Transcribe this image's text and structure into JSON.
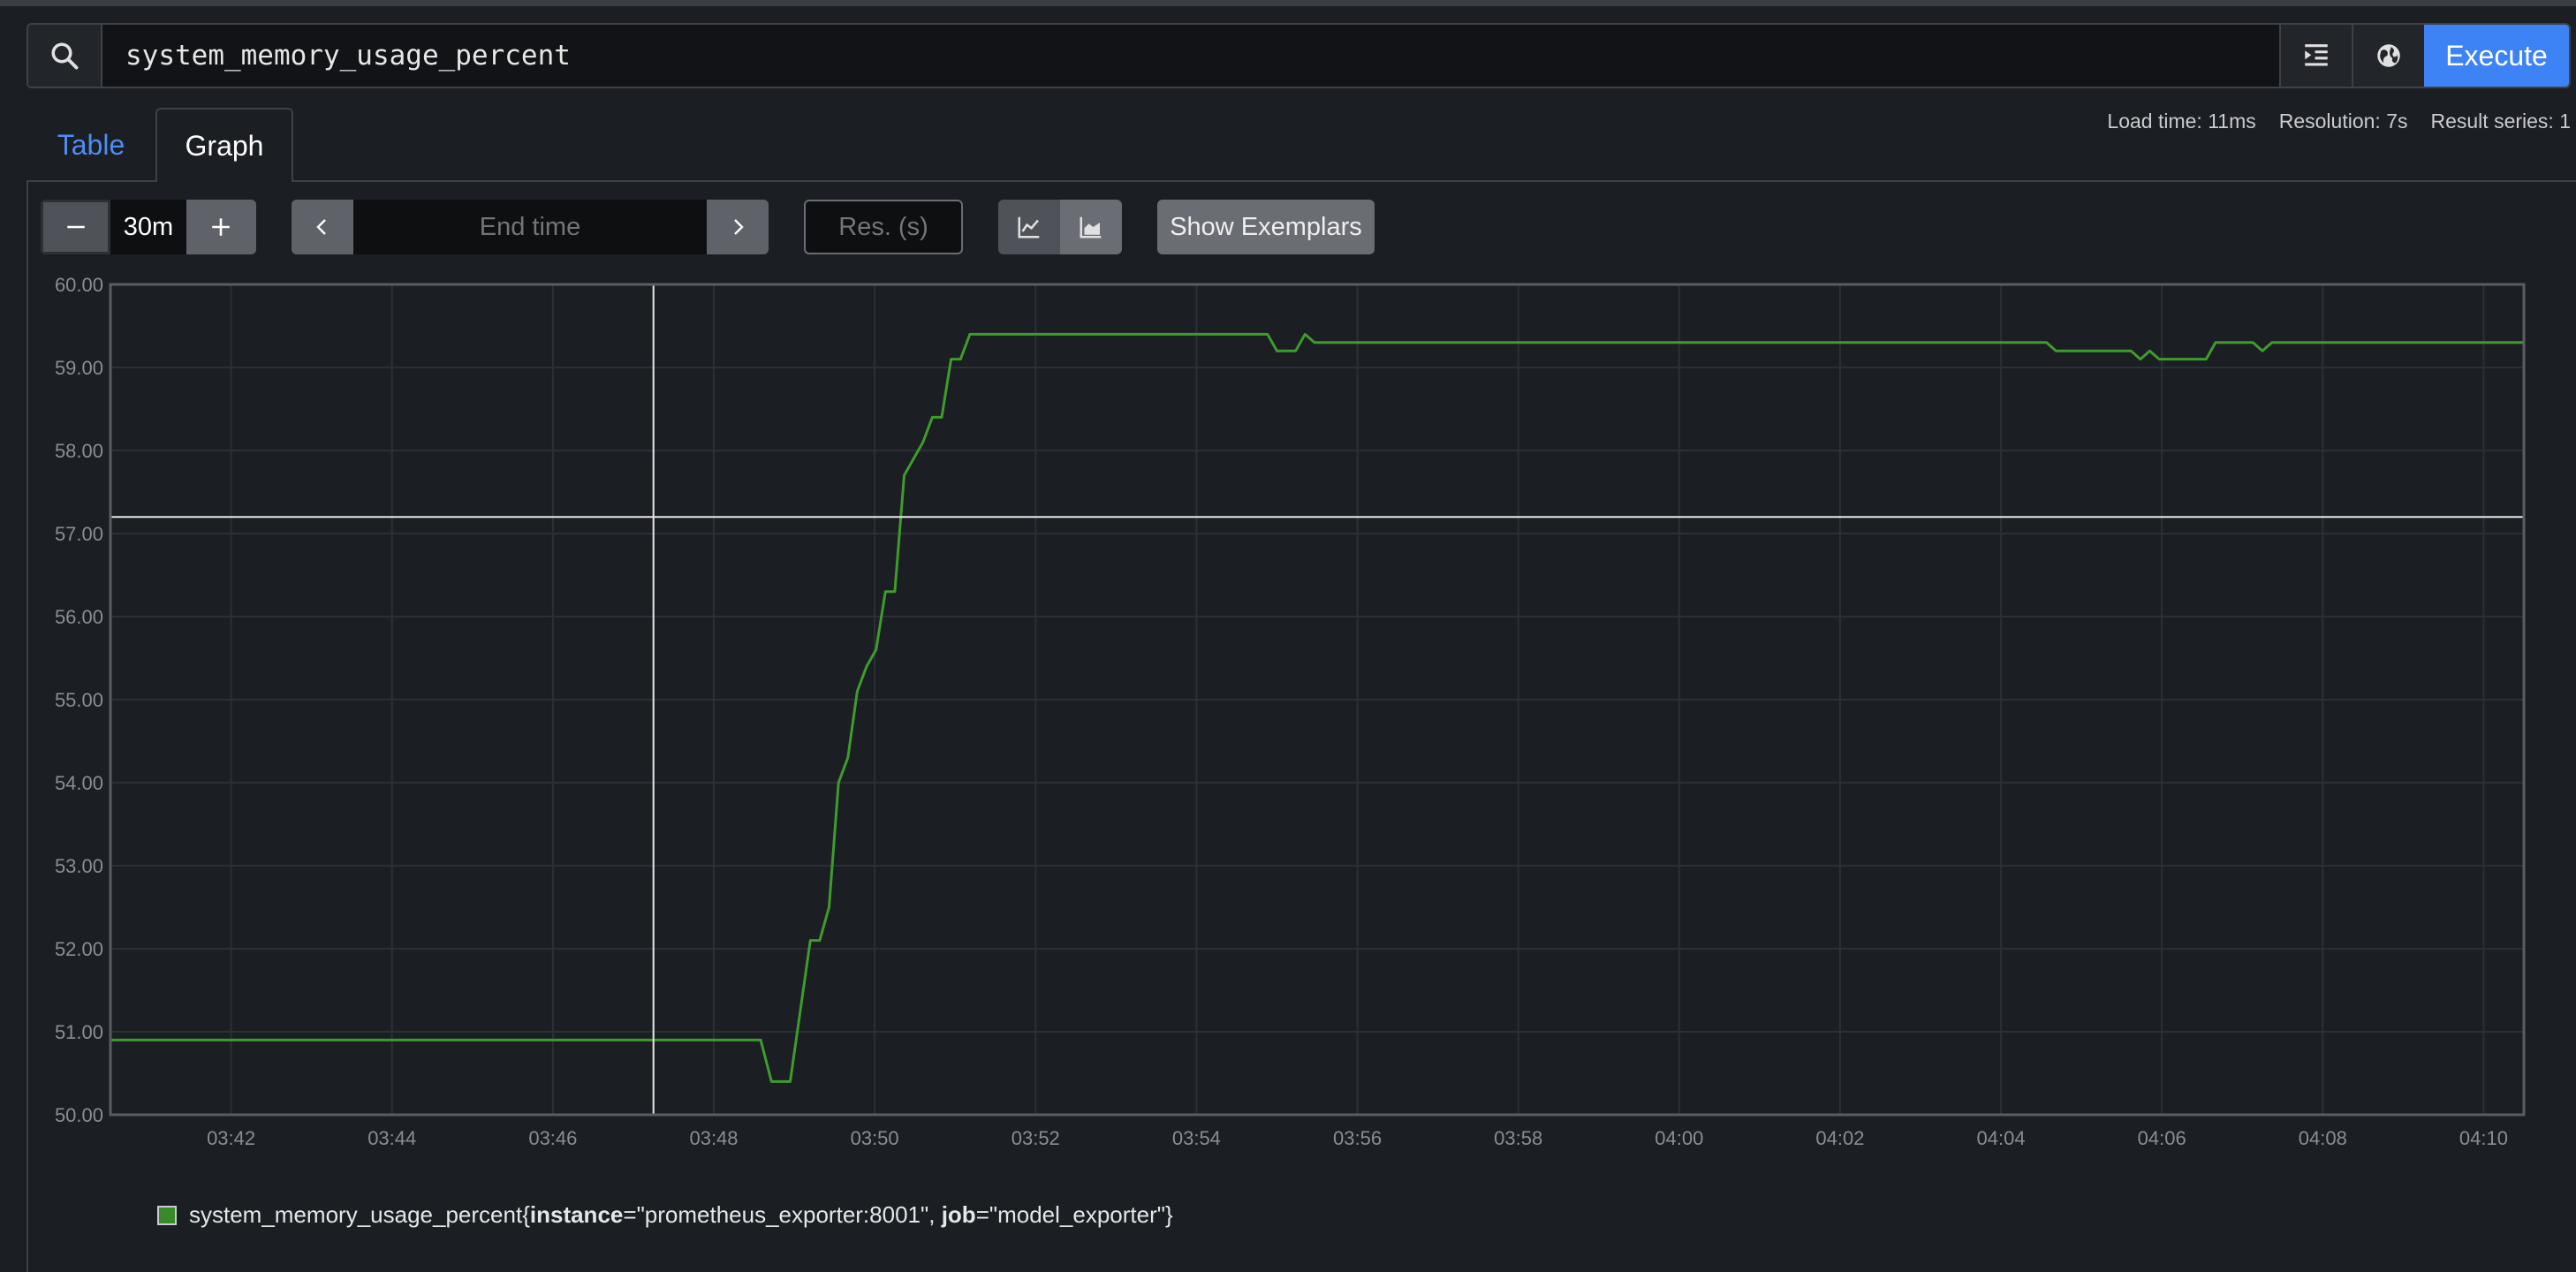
{
  "query": {
    "value": "system_memory_usage_percent",
    "execute_label": "Execute"
  },
  "tabs": [
    {
      "label": "Table",
      "active": false
    },
    {
      "label": "Graph",
      "active": true
    }
  ],
  "stats": {
    "load_time": "Load time: 11ms",
    "resolution": "Resolution: 7s",
    "result_series": "Result series: 1"
  },
  "controls": {
    "range_value": "30m",
    "end_time_placeholder": "End time",
    "resolution_placeholder": "Res. (s)",
    "show_exemplars_label": "Show Exemplars"
  },
  "colors": {
    "series": "#3e9c2c",
    "accent": "#3d83f6",
    "background": "#1b1e23"
  },
  "chart_data": {
    "type": "line",
    "y_ticks": [
      "60.00",
      "59.00",
      "58.00",
      "57.00",
      "56.00",
      "55.00",
      "54.00",
      "53.00",
      "52.00",
      "51.00",
      "50.00"
    ],
    "ylim": [
      50,
      60
    ],
    "x_ticks": [
      "03:42",
      "03:44",
      "03:46",
      "03:48",
      "03:50",
      "03:52",
      "03:54",
      "03:56",
      "03:58",
      "04:00",
      "04:02",
      "04:04",
      "04:06",
      "04:08",
      "04:10"
    ],
    "xlim": [
      "03:40:30",
      "04:10:30"
    ],
    "grid": true,
    "crosshair": {
      "x": "03:47:15",
      "y": 57.2
    },
    "series": [
      {
        "label": "system_memory_usage_percent{instance=\"prometheus_exporter:8001\", job=\"model_exporter\"}",
        "metric": "system_memory_usage_percent",
        "labels": [
          {
            "key": "instance",
            "value": "\"prometheus_exporter:8001\""
          },
          {
            "key": "job",
            "value": "\"model_exporter\""
          }
        ],
        "points": [
          [
            "03:40:30",
            50.9
          ],
          [
            "03:48:35",
            50.9
          ],
          [
            "03:48:43",
            50.4
          ],
          [
            "03:48:57",
            50.4
          ],
          [
            "03:49:12",
            52.1
          ],
          [
            "03:49:19",
            52.1
          ],
          [
            "03:49:26",
            52.5
          ],
          [
            "03:49:33",
            54.0
          ],
          [
            "03:49:40",
            54.3
          ],
          [
            "03:49:47",
            55.1
          ],
          [
            "03:49:54",
            55.4
          ],
          [
            "03:50:01",
            55.6
          ],
          [
            "03:50:08",
            56.3
          ],
          [
            "03:50:15",
            56.3
          ],
          [
            "03:50:22",
            57.7
          ],
          [
            "03:50:29",
            57.9
          ],
          [
            "03:50:36",
            58.1
          ],
          [
            "03:50:43",
            58.4
          ],
          [
            "03:50:50",
            58.4
          ],
          [
            "03:50:57",
            59.1
          ],
          [
            "03:51:04",
            59.1
          ],
          [
            "03:51:11",
            59.4
          ],
          [
            "03:54:53",
            59.4
          ],
          [
            "03:55:00",
            59.2
          ],
          [
            "03:55:14",
            59.2
          ],
          [
            "03:55:21",
            59.4
          ],
          [
            "03:55:28",
            59.3
          ],
          [
            "04:04:34",
            59.3
          ],
          [
            "04:04:41",
            59.2
          ],
          [
            "04:05:37",
            59.2
          ],
          [
            "04:05:44",
            59.1
          ],
          [
            "04:05:51",
            59.2
          ],
          [
            "04:05:58",
            59.1
          ],
          [
            "04:06:33",
            59.1
          ],
          [
            "04:06:40",
            59.3
          ],
          [
            "04:07:08",
            59.3
          ],
          [
            "04:07:15",
            59.2
          ],
          [
            "04:07:22",
            59.3
          ],
          [
            "04:10:30",
            59.3
          ]
        ]
      }
    ]
  }
}
